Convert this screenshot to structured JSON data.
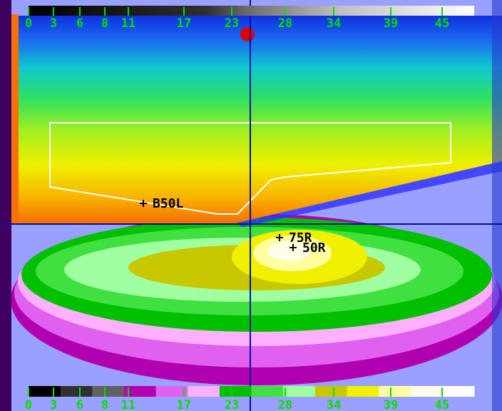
{
  "top_scale": {
    "labels": [
      "0",
      "3",
      "6",
      "8",
      "11",
      "17",
      "23",
      "28",
      "34",
      "39",
      "45"
    ]
  },
  "bottom_scale": {
    "labels": [
      "0",
      "3",
      "6",
      "8",
      "11",
      "17",
      "23",
      "28",
      "34",
      "39",
      "45"
    ]
  },
  "markers": [
    {
      "label": "B50L"
    },
    {
      "label": "75R"
    },
    {
      "label": "50R"
    }
  ]
}
